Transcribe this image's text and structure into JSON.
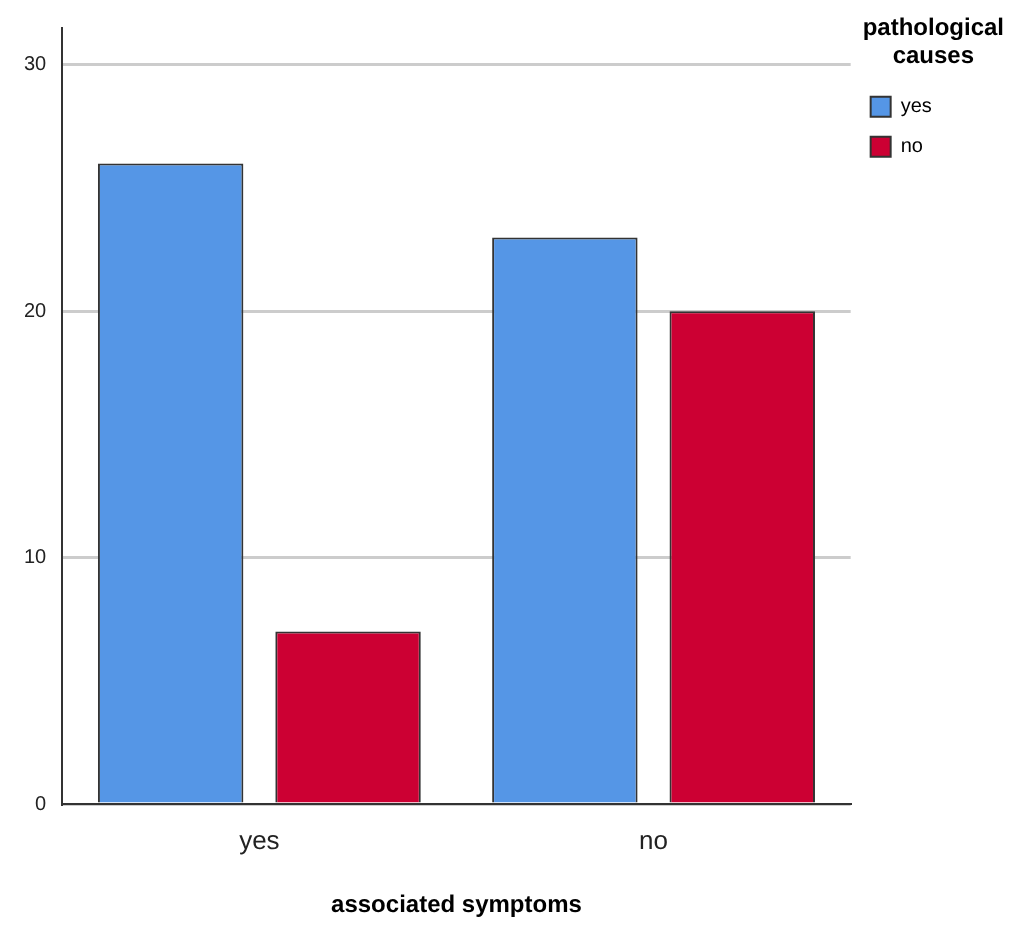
{
  "chart_data": {
    "type": "bar",
    "xlabel": "associated symptoms",
    "legend_title": "pathological causes",
    "categories": [
      "yes",
      "no"
    ],
    "series": [
      {
        "name": "yes",
        "color": "#5596e6",
        "values": [
          26,
          23
        ]
      },
      {
        "name": "no",
        "color": "#cc0033",
        "values": [
          7,
          20
        ]
      }
    ],
    "ylim": [
      0,
      31.5
    ],
    "yticks": [
      0,
      10,
      20,
      30
    ],
    "grid": "y",
    "legend": "top right"
  }
}
